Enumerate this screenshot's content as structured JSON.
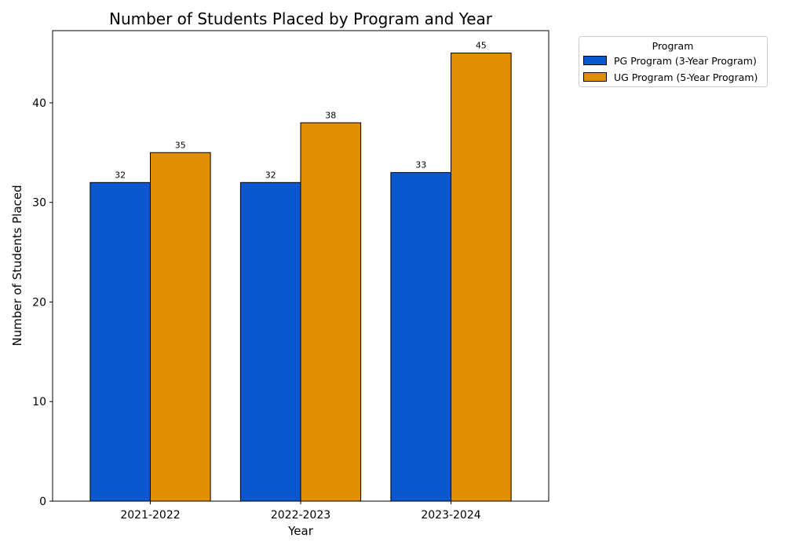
{
  "chart_data": {
    "type": "bar",
    "title": "Number of Students Placed by Program and Year",
    "xlabel": "Year",
    "ylabel": "Number of Students Placed",
    "categories": [
      "2021-2022",
      "2022-2023",
      "2023-2024"
    ],
    "series": [
      {
        "name": "PG Program (3-Year Program)",
        "values": [
          32,
          32,
          33
        ],
        "color": "#0b57d0"
      },
      {
        "name": "UG Program (5-Year Program)",
        "values": [
          35,
          38,
          45
        ],
        "color": "#e08f00"
      }
    ],
    "ylim": [
      0,
      47.25
    ],
    "yticks": [
      0,
      10,
      20,
      30,
      40
    ],
    "grid": false,
    "legend": {
      "title": "Program",
      "placement": "outside-top-right"
    },
    "data_labels": true
  }
}
